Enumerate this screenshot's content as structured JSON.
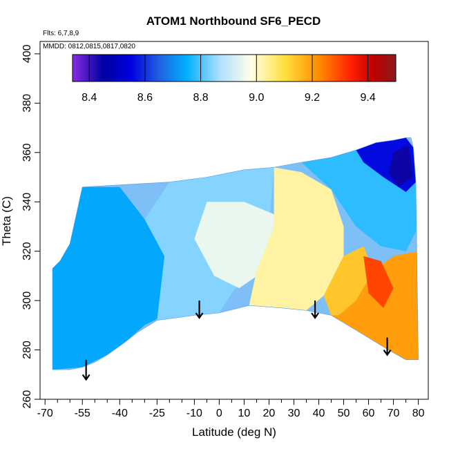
{
  "chart_data": {
    "type": "heatmap",
    "title": "ATOM1 Northbound SF6_PECD",
    "subtitle_flights": "Flts: 6,7,8,9",
    "subtitle_dates": "MMDD: 0812,0815,0817,0820",
    "xlabel": "Latitude (deg N)",
    "ylabel": "Theta (C)",
    "xlim": [
      -72,
      84
    ],
    "ylim": [
      260,
      405
    ],
    "x_ticks": [
      -70,
      -55,
      -40,
      -25,
      -10,
      0,
      10,
      20,
      30,
      40,
      50,
      60,
      70,
      80
    ],
    "x_minor_ticks": [
      -65,
      -60,
      -50,
      -45,
      -35,
      -30,
      -20,
      -15,
      -5,
      5,
      15,
      25,
      35,
      45,
      55,
      65,
      75
    ],
    "y_ticks": [
      260,
      280,
      300,
      320,
      340,
      360,
      380,
      400
    ],
    "colorbar": {
      "range": [
        8.34,
        9.5
      ],
      "ticks": [
        8.4,
        8.6,
        8.8,
        9.0,
        9.2,
        9.4
      ],
      "tick_labels": [
        "8.4",
        "8.6",
        "8.8",
        "9.0",
        "9.2",
        "9.4"
      ],
      "colors": [
        "#8a2be2",
        "#0000a0",
        "#0000e0",
        "#2060e0",
        "#00b0ff",
        "#b0e0ff",
        "#ffffe8",
        "#ffe040",
        "#ff9000",
        "#ff2000",
        "#c00000",
        "#8b1a1a"
      ],
      "color_stops": [
        8.34,
        8.45,
        8.55,
        8.65,
        8.75,
        8.87,
        8.98,
        9.1,
        9.22,
        9.34,
        9.42,
        9.5
      ]
    },
    "boundary": {
      "top": [
        [
          -67,
          313
        ],
        [
          -64,
          316
        ],
        [
          -60,
          323
        ],
        [
          -55,
          346
        ],
        [
          -20,
          348
        ],
        [
          -5,
          350
        ],
        [
          10,
          353
        ],
        [
          22,
          354
        ],
        [
          33,
          356
        ],
        [
          45,
          358
        ],
        [
          55,
          361
        ],
        [
          63,
          364
        ],
        [
          70,
          365
        ],
        [
          75,
          366
        ],
        [
          77,
          366
        ],
        [
          78,
          362
        ],
        [
          79,
          348
        ]
      ],
      "bottom": [
        [
          80,
          276
        ],
        [
          75,
          276
        ],
        [
          68,
          280
        ],
        [
          55,
          288
        ],
        [
          45,
          294
        ],
        [
          35,
          296
        ],
        [
          25,
          297
        ],
        [
          12,
          298
        ],
        [
          0,
          295
        ],
        [
          -10,
          294
        ],
        [
          -25,
          292
        ],
        [
          -33,
          287
        ],
        [
          -38,
          283
        ],
        [
          -45,
          278
        ],
        [
          -50,
          275
        ],
        [
          -55,
          273
        ],
        [
          -60,
          272
        ],
        [
          -67,
          272
        ]
      ]
    },
    "regions": [
      {
        "value": 8.74,
        "points": [
          [
            -67,
            272
          ],
          [
            -67,
            313
          ],
          [
            -60,
            323
          ],
          [
            -55,
            346
          ],
          [
            -40,
            346
          ],
          [
            -30,
            333
          ],
          [
            -22,
            318
          ],
          [
            -18,
            305
          ],
          [
            -22,
            294
          ],
          [
            -30,
            290
          ],
          [
            -38,
            283
          ],
          [
            -45,
            278
          ],
          [
            -55,
            273
          ]
        ]
      },
      {
        "value": 8.84,
        "points": [
          [
            -30,
            333
          ],
          [
            -20,
            348
          ],
          [
            -5,
            350
          ],
          [
            10,
            353
          ],
          [
            22,
            354
          ],
          [
            20,
            330
          ],
          [
            12,
            312
          ],
          [
            5,
            303
          ],
          [
            0,
            295
          ],
          [
            -10,
            294
          ],
          [
            -25,
            292
          ],
          [
            -22,
            318
          ]
        ]
      },
      {
        "value": 8.95,
        "points": [
          [
            -5,
            340
          ],
          [
            10,
            340
          ],
          [
            22,
            335
          ],
          [
            25,
            325
          ],
          [
            18,
            312
          ],
          [
            8,
            305
          ],
          [
            -2,
            310
          ],
          [
            -10,
            325
          ]
        ]
      },
      {
        "value": 9.03,
        "points": [
          [
            22,
            354
          ],
          [
            33,
            352
          ],
          [
            45,
            345
          ],
          [
            50,
            330
          ],
          [
            50,
            318
          ],
          [
            42,
            302
          ],
          [
            35,
            296
          ],
          [
            25,
            297
          ],
          [
            12,
            298
          ],
          [
            15,
            312
          ],
          [
            22,
            330
          ]
        ]
      },
      {
        "value": 9.14,
        "points": [
          [
            42,
            302
          ],
          [
            50,
            318
          ],
          [
            58,
            322
          ],
          [
            62,
            312
          ],
          [
            55,
            300
          ],
          [
            48,
            294
          ],
          [
            45,
            294
          ]
        ]
      },
      {
        "value": 9.2,
        "points": [
          [
            48,
            294
          ],
          [
            55,
            300
          ],
          [
            62,
            312
          ],
          [
            70,
            318
          ],
          [
            80,
            320
          ],
          [
            80,
            276
          ],
          [
            75,
            276
          ],
          [
            68,
            280
          ],
          [
            55,
            288
          ],
          [
            45,
            294
          ]
        ]
      },
      {
        "value": 9.3,
        "points": [
          [
            58,
            318
          ],
          [
            65,
            316
          ],
          [
            70,
            305
          ],
          [
            66,
            297
          ],
          [
            60,
            303
          ]
        ]
      },
      {
        "value": 8.78,
        "points": [
          [
            33,
            356
          ],
          [
            45,
            358
          ],
          [
            55,
            361
          ],
          [
            63,
            364
          ],
          [
            70,
            365
          ],
          [
            75,
            366
          ],
          [
            78,
            362
          ],
          [
            79,
            348
          ],
          [
            80,
            330
          ],
          [
            75,
            320
          ],
          [
            65,
            322
          ],
          [
            55,
            330
          ],
          [
            45,
            345
          ]
        ]
      },
      {
        "value": 8.56,
        "points": [
          [
            55,
            361
          ],
          [
            63,
            364
          ],
          [
            70,
            365
          ],
          [
            75,
            366
          ],
          [
            78,
            362
          ],
          [
            79,
            348
          ],
          [
            75,
            344
          ],
          [
            66,
            350
          ],
          [
            58,
            356
          ]
        ]
      },
      {
        "value": 8.44,
        "points": [
          [
            70,
            360
          ],
          [
            76,
            363
          ],
          [
            78,
            350
          ],
          [
            72,
            346
          ],
          [
            68,
            352
          ]
        ]
      }
    ],
    "annotations": [
      {
        "type": "arrow",
        "lat": -53.5,
        "theta_top": 276,
        "theta_tip": 268
      },
      {
        "type": "arrow",
        "lat": -8,
        "theta_top": 300,
        "theta_tip": 293
      },
      {
        "type": "arrow",
        "lat": 38.5,
        "theta_top": 300,
        "theta_tip": 293
      },
      {
        "type": "arrow",
        "lat": 67.5,
        "theta_top": 285,
        "theta_tip": 278
      }
    ]
  }
}
